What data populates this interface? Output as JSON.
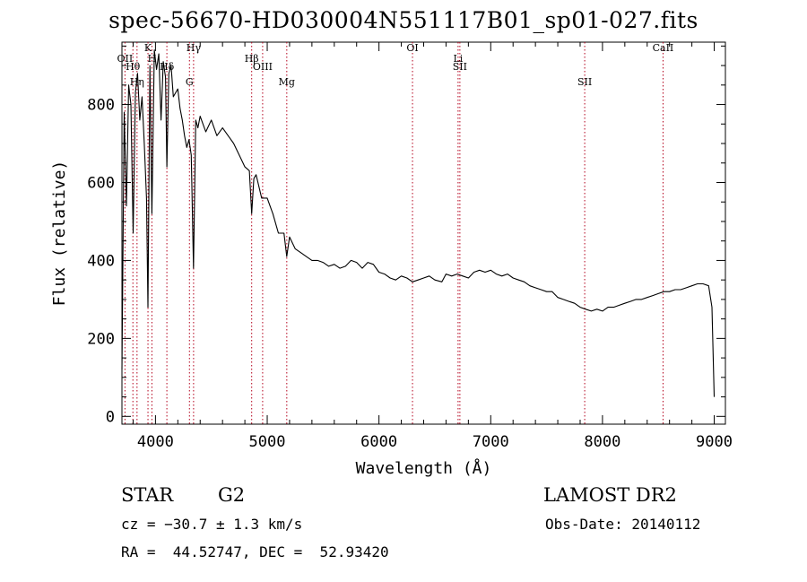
{
  "chart_data": {
    "type": "line",
    "title": "spec-56670-HD030004N551117B01_sp01-027.fits",
    "xlabel": "Wavelength (Å)",
    "ylabel": "Flux (relative)",
    "xlim": [
      3700,
      9100
    ],
    "ylim": [
      -20,
      960
    ],
    "xticks": [
      4000,
      5000,
      6000,
      7000,
      8000,
      9000
    ],
    "yticks": [
      0,
      200,
      400,
      600,
      800
    ],
    "grid": false,
    "series": [
      {
        "color": "#000000",
        "x": [
          3700,
          3720,
          3740,
          3760,
          3780,
          3800,
          3820,
          3840,
          3860,
          3880,
          3900,
          3920,
          3933,
          3950,
          3968,
          3990,
          4010,
          4030,
          4050,
          4070,
          4090,
          4102,
          4120,
          4140,
          4160,
          4180,
          4200,
          4220,
          4240,
          4260,
          4280,
          4300,
          4320,
          4340,
          4360,
          4380,
          4400,
          4450,
          4500,
          4550,
          4600,
          4650,
          4700,
          4750,
          4800,
          4840,
          4861,
          4880,
          4900,
          4950,
          5000,
          5050,
          5100,
          5150,
          5175,
          5200,
          5250,
          5300,
          5350,
          5400,
          5450,
          5500,
          5550,
          5600,
          5650,
          5700,
          5750,
          5800,
          5850,
          5900,
          5950,
          6000,
          6050,
          6100,
          6150,
          6200,
          6250,
          6300,
          6350,
          6400,
          6450,
          6500,
          6563,
          6600,
          6650,
          6700,
          6750,
          6800,
          6850,
          6900,
          6950,
          7000,
          7050,
          7100,
          7150,
          7200,
          7250,
          7300,
          7350,
          7400,
          7450,
          7500,
          7550,
          7600,
          7650,
          7700,
          7750,
          7800,
          7850,
          7900,
          7950,
          8000,
          8050,
          8100,
          8150,
          8200,
          8250,
          8300,
          8350,
          8400,
          8450,
          8500,
          8550,
          8600,
          8650,
          8700,
          8750,
          8800,
          8850,
          8900,
          8950,
          8980,
          9000
        ],
        "y": [
          120,
          780,
          540,
          850,
          800,
          470,
          830,
          880,
          760,
          820,
          700,
          560,
          280,
          900,
          520,
          940,
          890,
          930,
          760,
          910,
          870,
          640,
          880,
          900,
          820,
          830,
          840,
          790,
          760,
          720,
          690,
          710,
          670,
          380,
          760,
          740,
          770,
          730,
          760,
          720,
          740,
          720,
          700,
          670,
          640,
          630,
          520,
          610,
          620,
          560,
          560,
          520,
          470,
          470,
          410,
          460,
          430,
          420,
          410,
          400,
          400,
          395,
          385,
          390,
          380,
          385,
          400,
          395,
          380,
          395,
          390,
          370,
          365,
          355,
          350,
          360,
          355,
          345,
          350,
          355,
          360,
          350,
          345,
          365,
          360,
          365,
          360,
          355,
          370,
          375,
          370,
          375,
          365,
          360,
          365,
          355,
          350,
          345,
          335,
          330,
          325,
          320,
          320,
          305,
          300,
          295,
          290,
          280,
          275,
          270,
          275,
          270,
          280,
          280,
          285,
          290,
          295,
          300,
          300,
          305,
          310,
          315,
          320,
          320,
          325,
          325,
          330,
          335,
          340,
          340,
          335,
          280,
          50
        ]
      }
    ],
    "lines": [
      {
        "wavelength": 3727,
        "labels": [
          "OII"
        ]
      },
      {
        "wavelength": 3798,
        "labels": [
          "Hθ"
        ]
      },
      {
        "wavelength": 3835,
        "labels": [
          "Hη"
        ]
      },
      {
        "wavelength": 3933,
        "labels": [
          "K"
        ]
      },
      {
        "wavelength": 3968,
        "labels": [
          "H"
        ]
      },
      {
        "wavelength": 4102,
        "labels": [
          "Hδ"
        ]
      },
      {
        "wavelength": 4304,
        "labels": [
          "G"
        ]
      },
      {
        "wavelength": 4341,
        "labels": [
          "Hγ"
        ]
      },
      {
        "wavelength": 4861,
        "labels": [
          "Hβ"
        ]
      },
      {
        "wavelength": 4959,
        "labels": [
          "OIII"
        ]
      },
      {
        "wavelength": 5175,
        "labels": [
          "Mg"
        ]
      },
      {
        "wavelength": 6300,
        "labels": [
          "OI"
        ]
      },
      {
        "wavelength": 6708,
        "labels": [
          "Li"
        ]
      },
      {
        "wavelength": 6724,
        "labels": [
          "SII"
        ]
      },
      {
        "wavelength": 7841,
        "labels": [
          "SII"
        ]
      },
      {
        "wavelength": 8542,
        "labels": [
          "CaII"
        ]
      }
    ]
  },
  "info": {
    "object_type": "STAR",
    "subclass": "G2",
    "survey": "LAMOST DR2",
    "cz": "cz = −30.7 ± 1.3 km/s",
    "obs_date": "Obs-Date: 20140112",
    "coords": "RA =  44.52747, DEC =  52.93420"
  }
}
